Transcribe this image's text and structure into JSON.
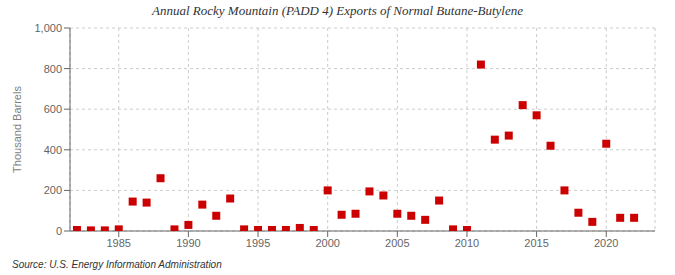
{
  "chart_data": {
    "type": "scatter",
    "title": "Annual Rocky Mountain (PADD 4) Exports of Normal Butane-Butylene",
    "ylabel": "Thousand Barrels",
    "annotation": "Source: U.S. Energy Information Administration",
    "color": "#cc0000",
    "marker": "square",
    "grid": true,
    "xlim": [
      1981.5,
      2023.5
    ],
    "xticks": [
      1985,
      1990,
      1995,
      2000,
      2005,
      2010,
      2015,
      2020
    ],
    "ylim": [
      0,
      1000
    ],
    "yticks": [
      0,
      200,
      400,
      600,
      800,
      {
        "value": 1000,
        "label": "1,000"
      }
    ],
    "x": [
      1982,
      1983,
      1984,
      1985,
      1986,
      1987,
      1988,
      1989,
      1990,
      1991,
      1992,
      1993,
      1994,
      1995,
      1996,
      1997,
      1998,
      1999,
      2000,
      2001,
      2002,
      2003,
      2004,
      2005,
      2006,
      2007,
      2008,
      2009,
      2010,
      2011,
      2012,
      2013,
      2014,
      2015,
      2016,
      2017,
      2018,
      2019,
      2020,
      2021,
      2022
    ],
    "values": [
      5,
      3,
      3,
      8,
      145,
      140,
      260,
      8,
      30,
      130,
      75,
      160,
      8,
      5,
      5,
      5,
      15,
      5,
      200,
      80,
      85,
      195,
      175,
      85,
      75,
      55,
      150,
      8,
      5,
      820,
      450,
      470,
      620,
      570,
      420,
      200,
      90,
      45,
      430,
      65,
      65
    ]
  }
}
